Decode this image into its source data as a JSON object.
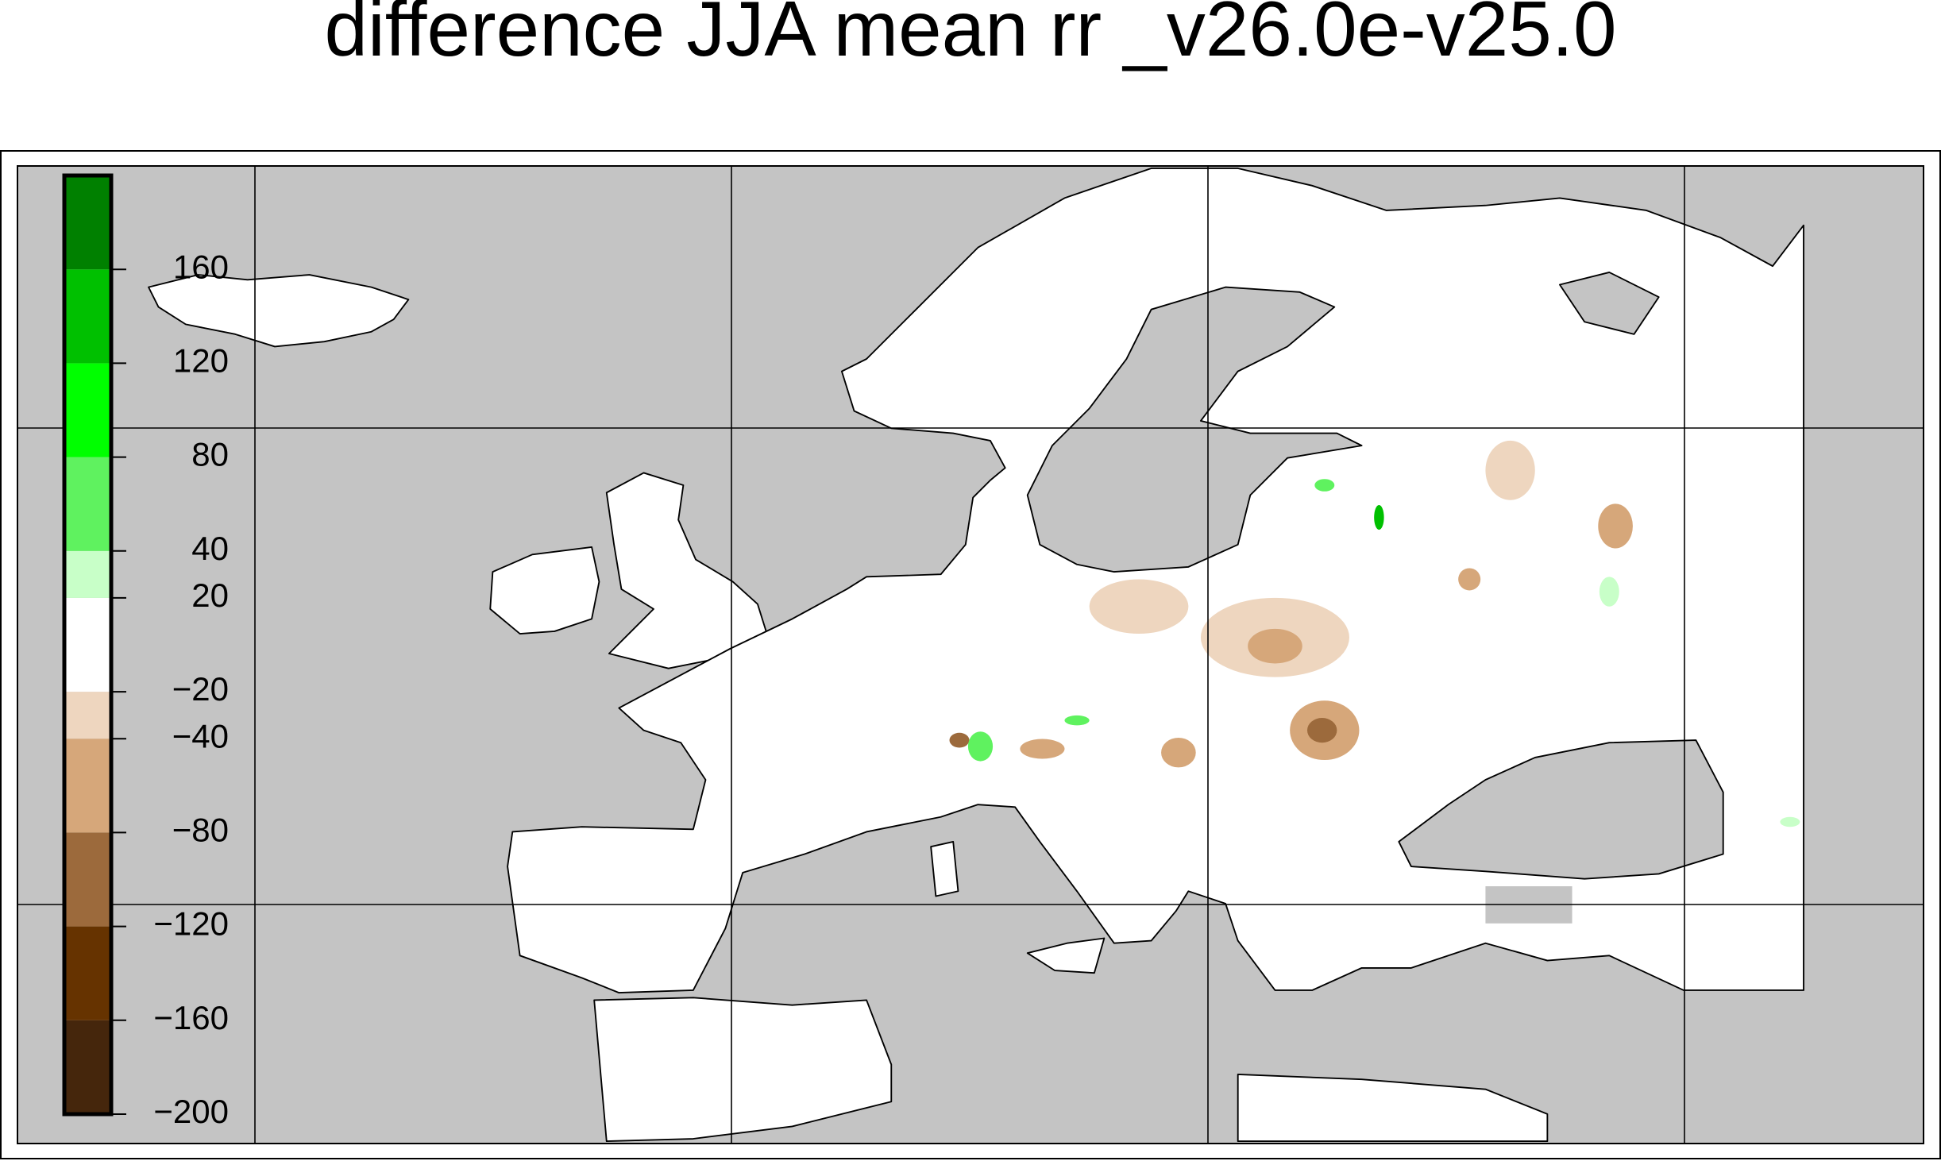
{
  "title": "difference JJA mean rr _v26.0e-v25.0",
  "colorbar": {
    "ylim": [
      -200,
      200
    ],
    "bins": [
      -200,
      -160,
      -120,
      -80,
      -40,
      -20,
      20,
      40,
      80,
      120,
      160,
      200
    ],
    "colors": [
      "#45260c",
      "#663300",
      "#9c6a3c",
      "#d6a77a",
      "#eed6bf",
      "#ffffff",
      "#c8ffc8",
      "#5ff25f",
      "#00ff00",
      "#00c000",
      "#008000"
    ],
    "ticks": [
      {
        "value": -200,
        "label": "−200"
      },
      {
        "value": -160,
        "label": "−160"
      },
      {
        "value": -120,
        "label": "−120"
      },
      {
        "value": -80,
        "label": "−80"
      },
      {
        "value": -40,
        "label": "−40"
      },
      {
        "value": -20,
        "label": "−20"
      },
      20,
      40,
      80,
      120,
      160
    ]
  }
}
